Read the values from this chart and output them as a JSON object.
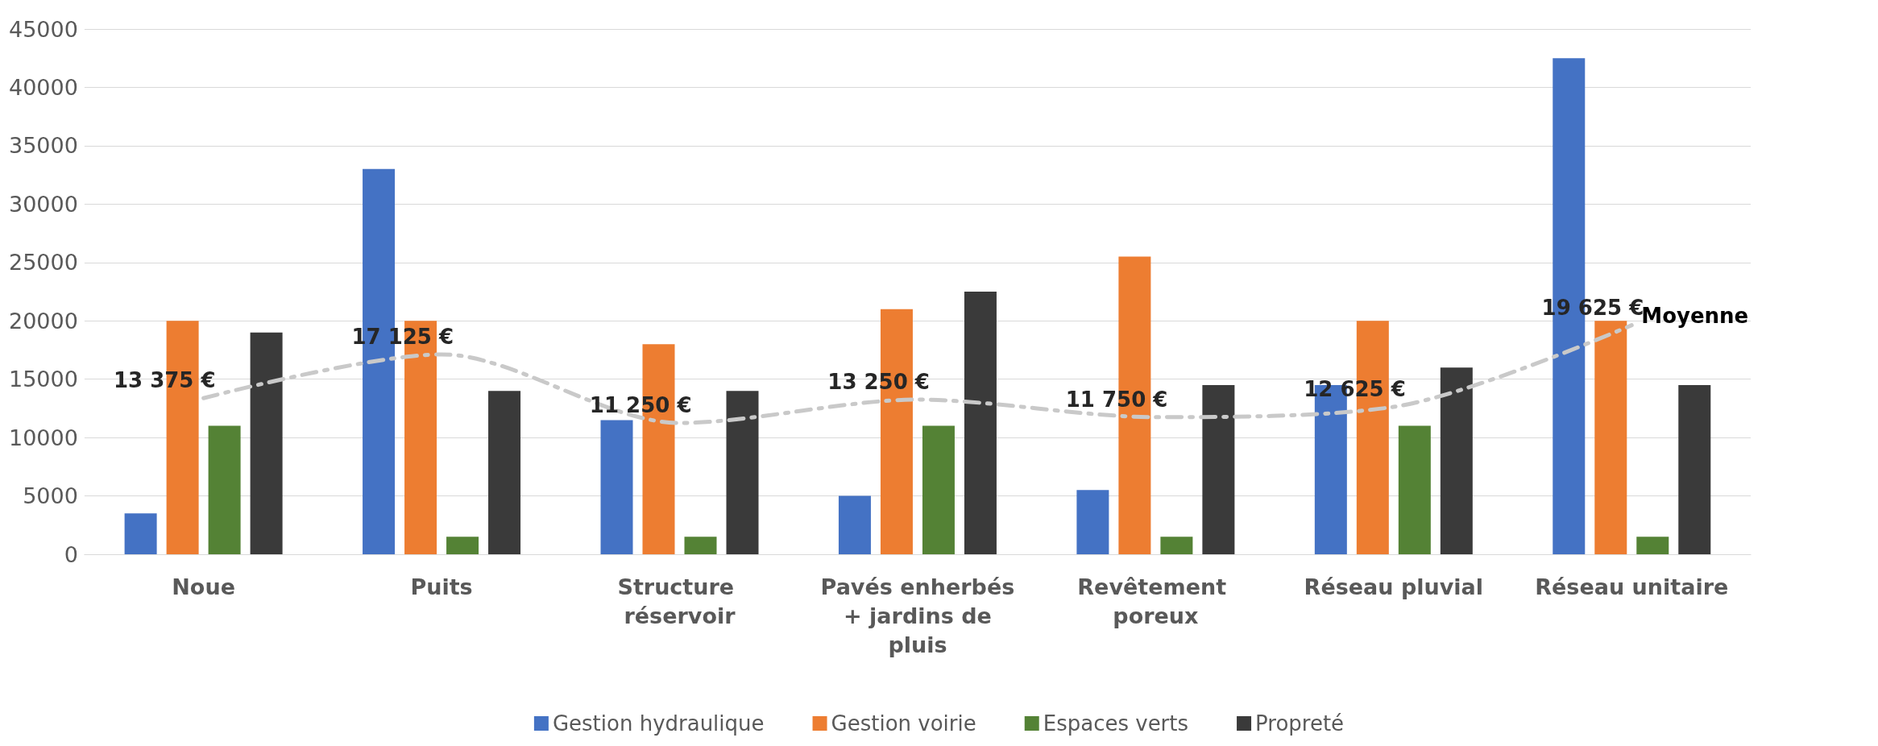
{
  "chart_data": {
    "type": "bar",
    "categories": [
      "Noue",
      "Puits",
      "Structure réservoir",
      "Pavés enherbés + jardins de pluis",
      "Revêtement poreux",
      "Réseau pluvial",
      "Réseau unitaire"
    ],
    "series": [
      {
        "name": "Gestion hydraulique",
        "color": "#4472c4",
        "values": [
          3500,
          33000,
          11500,
          5000,
          5500,
          14500,
          42500
        ]
      },
      {
        "name": "Gestion voirie",
        "color": "#ed7d31",
        "values": [
          20000,
          20000,
          18000,
          21000,
          25500,
          20000,
          20000
        ]
      },
      {
        "name": "Espaces verts",
        "color": "#548235",
        "values": [
          11000,
          1500,
          1500,
          11000,
          1500,
          11000,
          1500
        ]
      },
      {
        "name": "Propreté",
        "color": "#3a3a3a",
        "values": [
          19000,
          14000,
          14000,
          22500,
          14500,
          16000,
          14500
        ]
      },
      {
        "name": "Moyenne",
        "type": "line",
        "color": "#c9c9c9",
        "line_style": "dashed",
        "marker": "none",
        "values": [
          13375,
          17125,
          11250,
          13250,
          11750,
          12625,
          19625
        ],
        "value_labels": [
          "13 375 €",
          "17 125 €",
          "11 250 €",
          "13 250 €",
          "11 750 €",
          "12 625 €",
          "19 625 €"
        ]
      }
    ],
    "ylim": [
      0,
      45000
    ],
    "yticks": [
      0,
      5000,
      10000,
      15000,
      20000,
      25000,
      30000,
      35000,
      40000,
      45000
    ],
    "grid": "y",
    "legend": "bottom"
  }
}
